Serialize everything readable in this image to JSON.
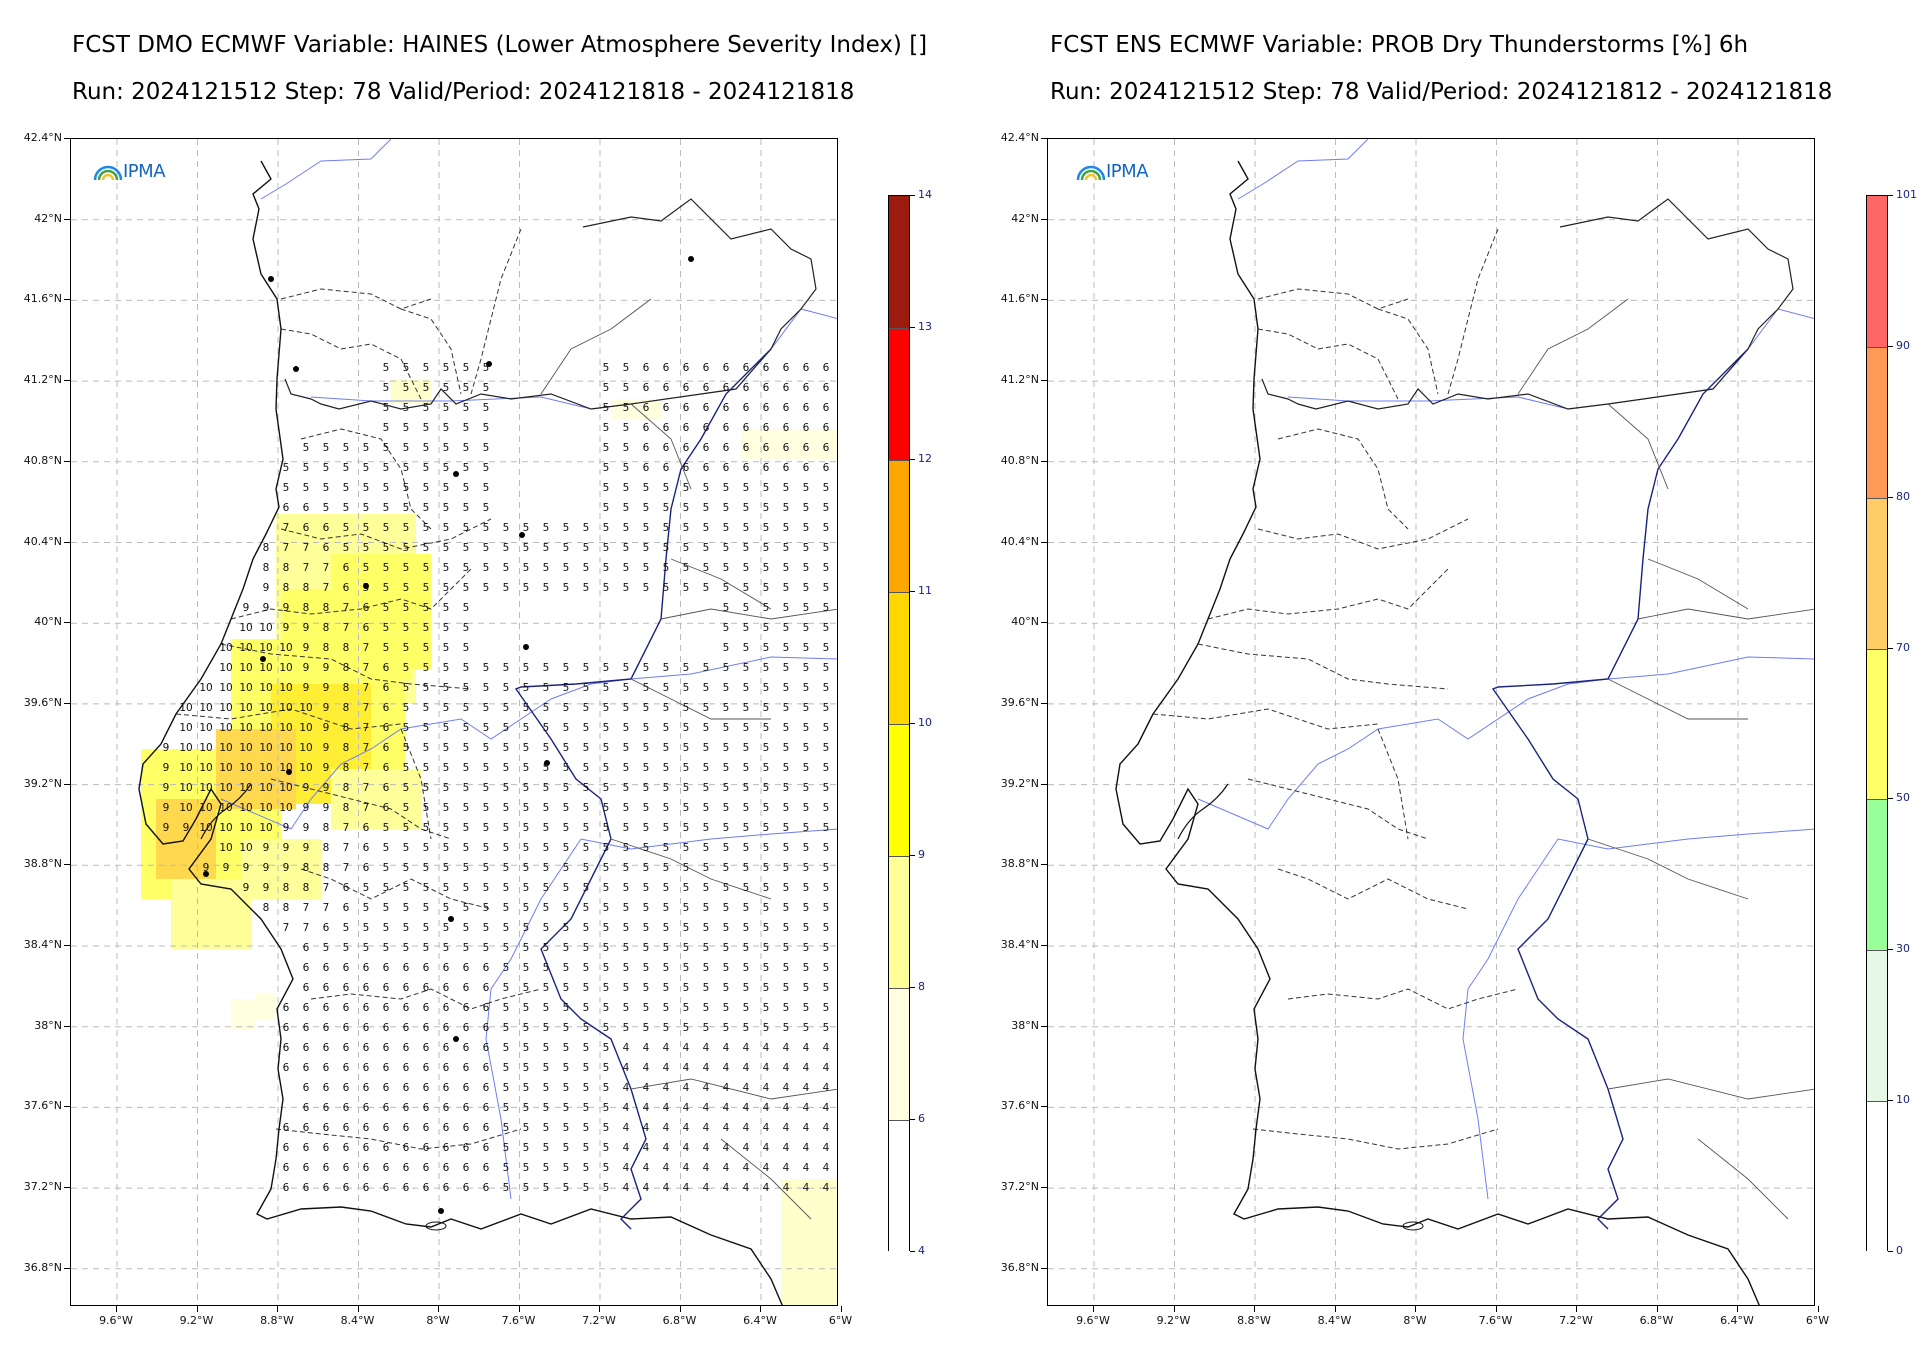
{
  "left_panel": {
    "title_line1": "FCST DMO ECMWF Variable: HAINES (Lower Atmosphere Severity Index) []",
    "title_line2": "Run: 2024121512 Step: 78 Valid/Period: 2024121818 - 2024121818",
    "logo": "IPMA",
    "colorbar_labels": [
      "14",
      "13",
      "12",
      "11",
      "10",
      "9",
      "8",
      "6",
      "4"
    ],
    "colorbar_colors": [
      "#9b1b0e",
      "#ff0000",
      "#ffa500",
      "#ffd700",
      "#ffff00",
      "#ffff99",
      "#ffffe0",
      "#ffffff"
    ]
  },
  "right_panel": {
    "title_line1": "FCST ENS ECMWF Variable: PROB Dry Thunderstorms [%] 6h",
    "title_line2": "Run: 2024121512 Step: 78 Valid/Period: 2024121812 - 2024121818",
    "logo": "IPMA",
    "colorbar_labels": [
      "101",
      "90",
      "80",
      "70",
      "50",
      "30",
      "10",
      "0"
    ],
    "colorbar_colors": [
      "#ff6666",
      "#ff9955",
      "#ffcc66",
      "#ffff66",
      "#99ff99",
      "#e6f7e6",
      "#ffffff"
    ]
  },
  "lat_labels": [
    "42.4°N",
    "42°N",
    "41.6°N",
    "41.2°N",
    "40.8°N",
    "40.4°N",
    "40°N",
    "39.6°N",
    "39.2°N",
    "38.8°N",
    "38.4°N",
    "38°N",
    "37.6°N",
    "37.2°N",
    "36.8°N"
  ],
  "lon_labels": [
    "9.6°W",
    "9.2°W",
    "8.8°W",
    "8.4°W",
    "8°W",
    "7.6°W",
    "7.2°W",
    "6.8°W",
    "6.4°W",
    "6°W"
  ]
}
